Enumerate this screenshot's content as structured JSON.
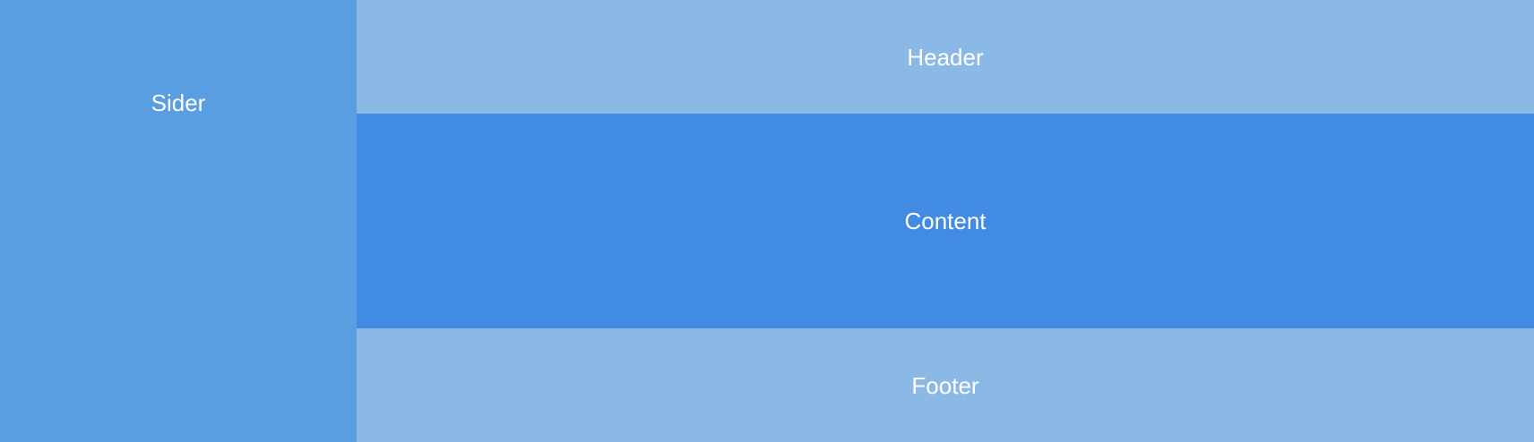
{
  "sider": {
    "label": "Sider"
  },
  "header": {
    "label": "Header"
  },
  "content": {
    "label": "Content"
  },
  "footer": {
    "label": "Footer"
  },
  "colors": {
    "sider": "#5a9ee2",
    "header": "#8bb9e6",
    "content": "#418be2",
    "footer": "#8bb9e6",
    "text": "#ffffff"
  }
}
